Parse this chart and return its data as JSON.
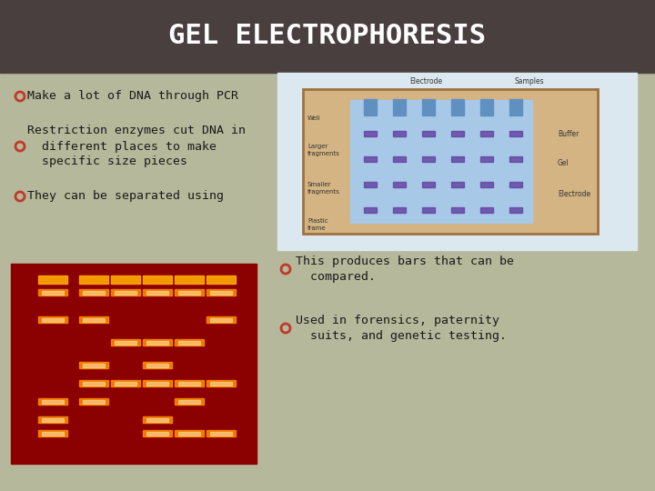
{
  "title": "GEL ELECTROPHORESIS",
  "title_bg": "#4a3f3f",
  "title_color": "#ffffff",
  "slide_bg": "#b5b89a",
  "bullet_color": "#c0392b",
  "text_color": "#1a1a1a",
  "bullets_left": [
    "Make a lot of DNA through PCR",
    "Restriction enzymes cut DNA in\n  different places to make\n  specific size pieces",
    "They can be separated using"
  ],
  "bullets_right": [
    "This produces bars that can be\n  compared.",
    "Used in forensics, paternity\n  suits, and genetic testing."
  ],
  "bullet_symbol": "O"
}
